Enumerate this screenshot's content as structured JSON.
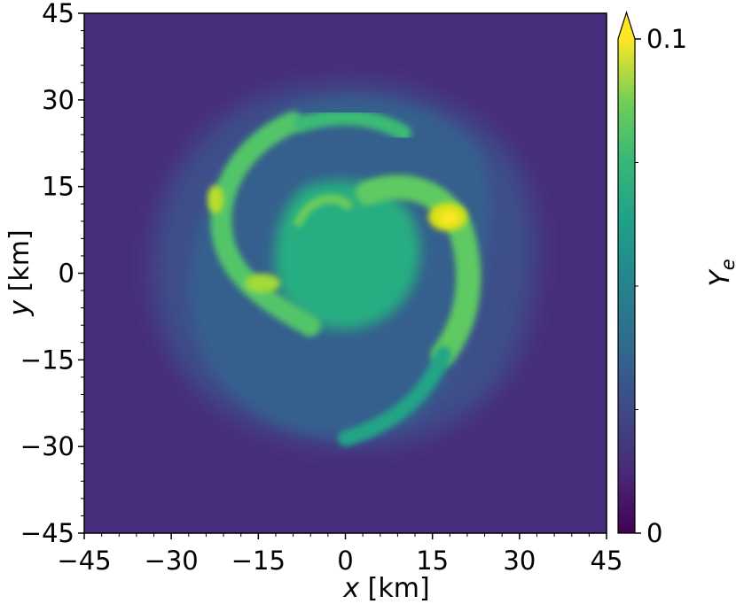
{
  "chart_data": {
    "type": "heatmap",
    "title": "",
    "xlabel": {
      "var": "x",
      "unit": " [km]"
    },
    "ylabel": {
      "var": "y",
      "unit": " [km]"
    },
    "xlim": [
      -45,
      45
    ],
    "ylim": [
      -45,
      45
    ],
    "x_ticks": [
      -45,
      -30,
      -15,
      0,
      15,
      30,
      45
    ],
    "y_ticks": [
      -45,
      -30,
      -15,
      0,
      15,
      30,
      45
    ],
    "x_tick_labels": [
      "−45",
      "−30",
      "−15",
      "0",
      "15",
      "30",
      "45"
    ],
    "y_tick_labels": [
      "−45",
      "−30",
      "−15",
      "0",
      "15",
      "30",
      "45"
    ],
    "colormap": "viridis",
    "colorbar": {
      "label_base": "Y",
      "label_sub": "e",
      "range": [
        0,
        0.1
      ],
      "tick_values": [
        0,
        0.1
      ],
      "tick_labels": [
        "0",
        "0.1"
      ],
      "extend": "max"
    },
    "background_value": 0.0,
    "features": [
      {
        "description": "outer diffuse envelope",
        "center_km": [
          0,
          0
        ],
        "radius_km": 33,
        "value": 0.015
      },
      {
        "description": "inner core",
        "center_km": [
          0,
          2
        ],
        "radius_km": 15,
        "value": 0.062
      },
      {
        "description": "spiral arm west",
        "value": 0.085
      },
      {
        "description": "hot spot north-east",
        "center_km": [
          18,
          9
        ],
        "value": 0.1
      }
    ]
  }
}
